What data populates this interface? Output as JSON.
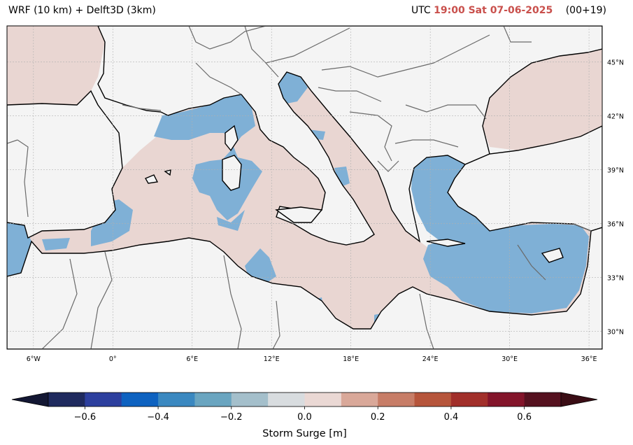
{
  "header": {
    "model_label": "WRF (10 km) + Delft3D (3km)",
    "utc_label": "UTC",
    "time_text": "19:00 Sat 07-06-2025",
    "run_text": "(00+19)",
    "highlight_color": "#c9504c"
  },
  "map": {
    "extent": {
      "lon_min": -8,
      "lon_max": 37,
      "lat_min": 29,
      "lat_max": 47
    },
    "lon_ticks": [
      {
        "value": -6,
        "label": "6°W"
      },
      {
        "value": 0,
        "label": "0°"
      },
      {
        "value": 6,
        "label": "6°E"
      },
      {
        "value": 12,
        "label": "12°E"
      },
      {
        "value": 18,
        "label": "18°E"
      },
      {
        "value": 24,
        "label": "24°E"
      },
      {
        "value": 30,
        "label": "30°E"
      },
      {
        "value": 36,
        "label": "36°E"
      }
    ],
    "lat_ticks": [
      {
        "value": 30,
        "label": "30°N"
      },
      {
        "value": 33,
        "label": "33°N"
      },
      {
        "value": 36,
        "label": "36°N"
      },
      {
        "value": 39,
        "label": "39°N"
      },
      {
        "value": 42,
        "label": "42°N"
      },
      {
        "value": 45,
        "label": "45°N"
      }
    ],
    "colors": {
      "land": "#f4f4f4",
      "sea_positive": "#e9d6d2",
      "sea_negative": "#7fb0d6",
      "grid": "#b0b0b0",
      "border": "#6a6a6a",
      "coast": "#000000"
    }
  },
  "colorbar": {
    "title": "Storm Surge [m]",
    "ticks": [
      {
        "value": -0.6,
        "label": "−0.6"
      },
      {
        "value": -0.4,
        "label": "−0.4"
      },
      {
        "value": -0.2,
        "label": "−0.2"
      },
      {
        "value": 0.0,
        "label": "0.0"
      },
      {
        "value": 0.2,
        "label": "0.2"
      },
      {
        "value": 0.4,
        "label": "0.4"
      },
      {
        "value": 0.6,
        "label": "0.6"
      }
    ],
    "range": [
      -0.7,
      0.7
    ],
    "bin_size": 0.1,
    "bins": [
      "#1f2a5e",
      "#2d3f9e",
      "#0e62c0",
      "#3a88c0",
      "#6aa5c0",
      "#a4bfcb",
      "#d8dcdf",
      "#ead8d4",
      "#d9a899",
      "#c77d67",
      "#b6553b",
      "#a12f2a",
      "#83142a",
      "#55111f"
    ],
    "under_color": "#131733",
    "over_color": "#3a0d15"
  }
}
